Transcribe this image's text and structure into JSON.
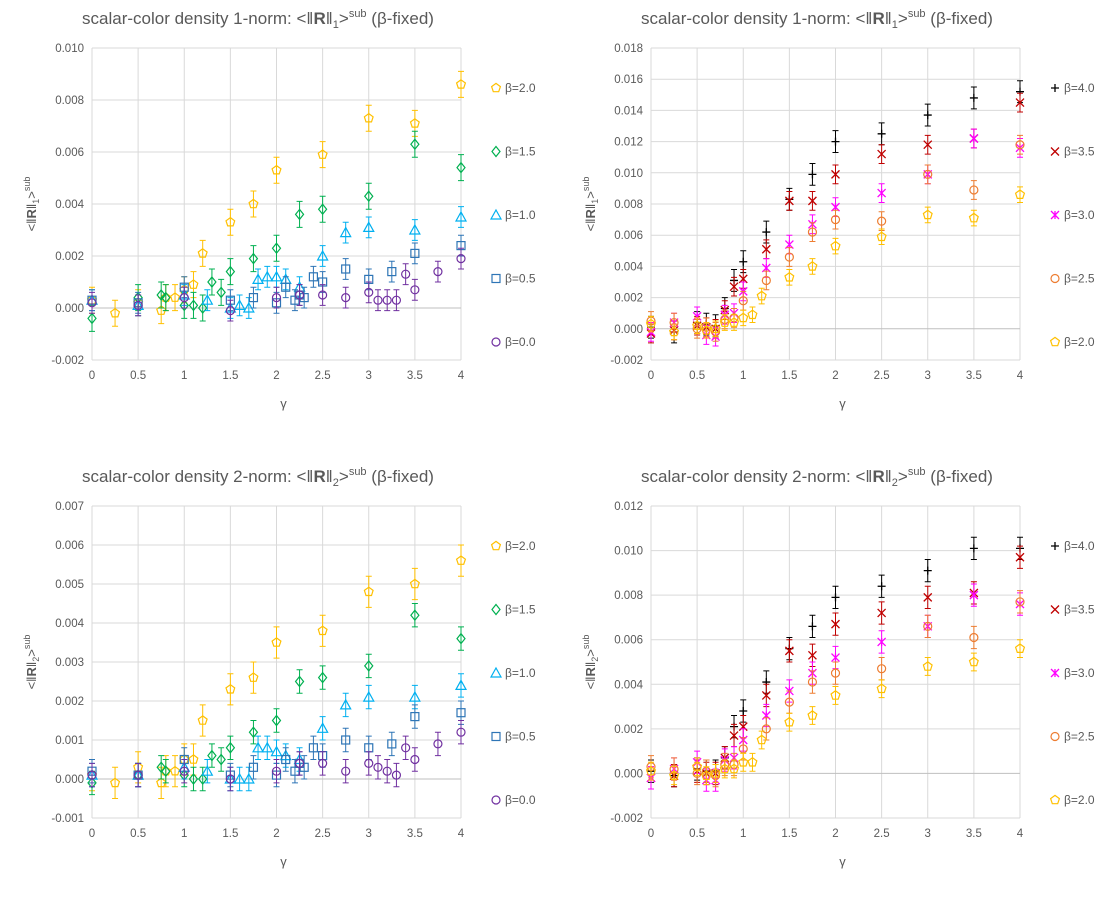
{
  "chart_data": [
    {
      "type": "scatter",
      "title_prefix": "scalar-color density 1-norm: <‖",
      "title_bold": "R",
      "title_sub": "1",
      "title_sup": "sub",
      "title_suffix": "(β-fixed)",
      "ylabel_sub": "1",
      "xlabel": "γ",
      "xlim": [
        0,
        4
      ],
      "ylim": [
        -0.002,
        0.01
      ],
      "xticks": [
        "0",
        "0.5",
        "1",
        "1.5",
        "2",
        "2.5",
        "3",
        "3.5",
        "4"
      ],
      "yticks": [
        "-0.002",
        "0.000",
        "0.002",
        "0.004",
        "0.006",
        "0.008",
        "0.010"
      ],
      "legend_position": "right",
      "series": [
        {
          "name": "β=2.0",
          "color": "#FFC000",
          "marker": "pentagon",
          "x": [
            0,
            0.25,
            0.5,
            0.75,
            0.8,
            0.9,
            1,
            1.1,
            1.2,
            1.5,
            1.75,
            2,
            2.5,
            3,
            3.5,
            4
          ],
          "y": [
            0.0003,
            -0.0002,
            0.0002,
            -0.0001,
            0.0004,
            0.0004,
            0.0007,
            0.0009,
            0.0021,
            0.0033,
            0.004,
            0.0053,
            0.0059,
            0.0073,
            0.0071,
            0.0086
          ],
          "err": 0.0005
        },
        {
          "name": "β=1.5",
          "color": "#00B050",
          "marker": "diamond",
          "x": [
            0,
            0.5,
            0.75,
            0.8,
            1,
            1.1,
            1.2,
            1.3,
            1.4,
            1.5,
            1.75,
            2,
            2.25,
            2.5,
            3,
            3.5,
            4
          ],
          "y": [
            -0.0004,
            0.0004,
            0.0005,
            0.0004,
            0.0001,
            0.0001,
            0.0,
            0.001,
            0.0006,
            0.0014,
            0.0019,
            0.0023,
            0.0036,
            0.0038,
            0.0043,
            0.0063,
            0.0054
          ],
          "err": 0.0005
        },
        {
          "name": "β=1.0",
          "color": "#00B0F0",
          "marker": "triangle",
          "x": [
            0,
            0.5,
            1,
            1.25,
            1.5,
            1.6,
            1.7,
            1.8,
            1.9,
            2,
            2.1,
            2.25,
            2.5,
            2.75,
            3,
            3.5,
            4
          ],
          "y": [
            0.0003,
            0.0001,
            0.0005,
            0.0003,
            0.0,
            0.0001,
            0.0,
            0.0011,
            0.0012,
            0.0012,
            0.0011,
            0.0008,
            0.002,
            0.0029,
            0.0031,
            0.003,
            0.0035
          ],
          "err": 0.0004
        },
        {
          "name": "β=0.5",
          "color": "#2E75B6",
          "marker": "square",
          "x": [
            0,
            0.5,
            1,
            1.5,
            1.75,
            2,
            2.1,
            2.2,
            2.25,
            2.3,
            2.4,
            2.5,
            2.75,
            3,
            3.25,
            3.5,
            4
          ],
          "y": [
            0.0003,
            0.0002,
            0.0008,
            0.0003,
            0.0004,
            0.0002,
            0.0008,
            0.0003,
            0.0005,
            0.0004,
            0.0012,
            0.001,
            0.0015,
            0.0011,
            0.0014,
            0.0021,
            0.0024
          ],
          "err": 0.0004
        },
        {
          "name": "β=0.0",
          "color": "#7030A0",
          "marker": "circle",
          "x": [
            0,
            0.5,
            1,
            1.5,
            2,
            2.25,
            2.5,
            2.75,
            3,
            3.1,
            3.2,
            3.3,
            3.4,
            3.5,
            3.75,
            4
          ],
          "y": [
            0.0002,
            0.0001,
            0.0004,
            -0.0001,
            0.0004,
            0.0005,
            0.0005,
            0.0004,
            0.0006,
            0.0003,
            0.0003,
            0.0003,
            0.0013,
            0.0007,
            0.0014,
            0.0019
          ],
          "err": 0.0004
        }
      ]
    },
    {
      "type": "scatter",
      "title_prefix": "scalar-color density 1-norm: <‖",
      "title_bold": "R",
      "title_sub": "1",
      "title_sup": "sub",
      "title_suffix": "(β-fixed)",
      "ylabel_sub": "1",
      "xlabel": "γ",
      "xlim": [
        0,
        4
      ],
      "ylim": [
        -0.002,
        0.018
      ],
      "xticks": [
        "0",
        "0.5",
        "1",
        "1.5",
        "2",
        "2.5",
        "3",
        "3.5",
        "4"
      ],
      "yticks": [
        "-0.002",
        "0.000",
        "0.002",
        "0.004",
        "0.006",
        "0.008",
        "0.010",
        "0.012",
        "0.014",
        "0.016",
        "0.018"
      ],
      "legend_position": "right",
      "series": [
        {
          "name": "β=4.0",
          "color": "#000000",
          "marker": "plus",
          "x": [
            0,
            0.25,
            0.5,
            0.6,
            0.7,
            0.8,
            0.9,
            1,
            1.25,
            1.5,
            1.75,
            2,
            2.5,
            3,
            3.5,
            4
          ],
          "y": [
            0.0001,
            -0.0002,
            0.0004,
            0.0003,
            0.0002,
            0.0013,
            0.0031,
            0.0043,
            0.0062,
            0.0083,
            0.0099,
            0.012,
            0.0125,
            0.0137,
            0.0148,
            0.0152
          ],
          "err": 0.0007
        },
        {
          "name": "β=3.5",
          "color": "#C00000",
          "marker": "x",
          "x": [
            0,
            0.25,
            0.5,
            0.6,
            0.7,
            0.8,
            0.9,
            1,
            1.25,
            1.5,
            1.75,
            2,
            2.5,
            3,
            3.5,
            4
          ],
          "y": [
            -0.0003,
            -0.0001,
            0.0002,
            0.0001,
            0.0,
            0.0012,
            0.0027,
            0.0032,
            0.0051,
            0.0082,
            0.0082,
            0.0099,
            0.0112,
            0.0118,
            0.0122,
            0.0145
          ],
          "err": 0.0006
        },
        {
          "name": "β=3.0",
          "color": "#FF00FF",
          "marker": "star",
          "x": [
            0,
            0.25,
            0.5,
            0.6,
            0.7,
            0.8,
            0.9,
            1,
            1.25,
            1.5,
            1.75,
            2,
            2.5,
            3,
            3.5,
            4
          ],
          "y": [
            -0.0002,
            0.0004,
            0.0008,
            -0.0004,
            -0.0005,
            0.0009,
            0.001,
            0.0024,
            0.0039,
            0.0054,
            0.0067,
            0.0078,
            0.0087,
            0.0099,
            0.0122,
            0.0116
          ],
          "err": 0.0006
        },
        {
          "name": "β=2.5",
          "color": "#ED7D31",
          "marker": "circle",
          "x": [
            0,
            0.25,
            0.5,
            0.6,
            0.7,
            0.8,
            0.9,
            1,
            1.25,
            1.5,
            1.75,
            2,
            2.5,
            3,
            3.5,
            4
          ],
          "y": [
            0.0005,
            0.0004,
            0.0,
            0.0001,
            -0.0002,
            0.0006,
            0.0007,
            0.0018,
            0.0031,
            0.0046,
            0.0062,
            0.007,
            0.0069,
            0.0099,
            0.0089,
            0.0118
          ],
          "err": 0.0006
        },
        {
          "name": "β=2.0",
          "color": "#FFC000",
          "marker": "pentagon",
          "x": [
            0,
            0.25,
            0.5,
            0.6,
            0.7,
            0.8,
            0.9,
            1,
            1.1,
            1.2,
            1.5,
            1.75,
            2,
            2.5,
            3,
            3.5,
            4
          ],
          "y": [
            0.0003,
            -0.0002,
            0.0002,
            -0.0001,
            0.0,
            0.0004,
            0.0004,
            0.0007,
            0.0009,
            0.0021,
            0.0033,
            0.004,
            0.0053,
            0.0059,
            0.0073,
            0.0071,
            0.0086
          ],
          "err": 0.0005
        }
      ]
    },
    {
      "type": "scatter",
      "title_prefix": "scalar-color density 2-norm: <‖",
      "title_bold": "R",
      "title_sub": "2",
      "title_sup": "sub",
      "title_suffix": "(β-fixed)",
      "ylabel_sub": "2",
      "xlabel": "γ",
      "xlim": [
        0,
        4
      ],
      "ylim": [
        -0.001,
        0.007
      ],
      "xticks": [
        "0",
        "0.5",
        "1",
        "1.5",
        "2",
        "2.5",
        "3",
        "3.5",
        "4"
      ],
      "yticks": [
        "-0.001",
        "0.000",
        "0.001",
        "0.002",
        "0.003",
        "0.004",
        "0.005",
        "0.006",
        "0.007"
      ],
      "legend_position": "right",
      "series": [
        {
          "name": "β=2.0",
          "color": "#FFC000",
          "marker": "pentagon",
          "x": [
            0,
            0.25,
            0.5,
            0.75,
            0.8,
            0.9,
            1,
            1.1,
            1.2,
            1.5,
            1.75,
            2,
            2.5,
            3,
            3.5,
            4
          ],
          "y": [
            0.0001,
            -0.0001,
            0.0003,
            -0.0001,
            0.0002,
            0.0002,
            0.0005,
            0.0005,
            0.0015,
            0.0023,
            0.0026,
            0.0035,
            0.0038,
            0.0048,
            0.005,
            0.0056
          ],
          "err": 0.0004
        },
        {
          "name": "β=1.5",
          "color": "#00B050",
          "marker": "diamond",
          "x": [
            0,
            0.5,
            0.75,
            0.8,
            1,
            1.1,
            1.2,
            1.3,
            1.4,
            1.5,
            1.75,
            2,
            2.25,
            2.5,
            3,
            3.5,
            4
          ],
          "y": [
            -0.0001,
            0.0001,
            0.0003,
            0.0002,
            0.0001,
            0.0,
            0.0,
            0.0006,
            0.0005,
            0.0008,
            0.0012,
            0.0015,
            0.0025,
            0.0026,
            0.0029,
            0.0042,
            0.0036
          ],
          "err": 0.0003
        },
        {
          "name": "β=1.0",
          "color": "#00B0F0",
          "marker": "triangle",
          "x": [
            0,
            0.5,
            1,
            1.25,
            1.5,
            1.6,
            1.7,
            1.8,
            1.9,
            2,
            2.1,
            2.25,
            2.5,
            2.75,
            3,
            3.5,
            4
          ],
          "y": [
            0.0001,
            0.0001,
            0.0003,
            0.0002,
            0.0,
            0.0,
            0.0,
            0.0008,
            0.0008,
            0.0007,
            0.0006,
            0.0005,
            0.0013,
            0.0019,
            0.0021,
            0.0021,
            0.0024
          ],
          "err": 0.0003
        },
        {
          "name": "β=0.5",
          "color": "#2E75B6",
          "marker": "square",
          "x": [
            0,
            0.5,
            1,
            1.5,
            1.75,
            2,
            2.1,
            2.2,
            2.25,
            2.3,
            2.4,
            2.5,
            2.75,
            3,
            3.25,
            3.5,
            4
          ],
          "y": [
            0.0002,
            0.0001,
            0.0005,
            0.0001,
            0.0003,
            0.0001,
            0.0005,
            0.0002,
            0.0004,
            0.0003,
            0.0008,
            0.0006,
            0.001,
            0.0008,
            0.0009,
            0.0016,
            0.0017
          ],
          "err": 0.0003
        },
        {
          "name": "β=0.0",
          "color": "#7030A0",
          "marker": "circle",
          "x": [
            0,
            0.5,
            1,
            1.5,
            2,
            2.25,
            2.5,
            2.75,
            3,
            3.1,
            3.2,
            3.3,
            3.4,
            3.5,
            3.75,
            4
          ],
          "y": [
            0.0001,
            0.0001,
            0.0002,
            0.0,
            0.0002,
            0.0004,
            0.0004,
            0.0002,
            0.0004,
            0.0003,
            0.0002,
            0.0001,
            0.0008,
            0.0005,
            0.0009,
            0.0012
          ],
          "err": 0.0003
        }
      ]
    },
    {
      "type": "scatter",
      "title_prefix": "scalar-color density 2-norm: <‖",
      "title_bold": "R",
      "title_sub": "2",
      "title_sup": "sub",
      "title_suffix": "(β-fixed)",
      "ylabel_sub": "2",
      "xlabel": "γ",
      "xlim": [
        0,
        4
      ],
      "ylim": [
        -0.002,
        0.012
      ],
      "xticks": [
        "0",
        "0.5",
        "1",
        "1.5",
        "2",
        "2.5",
        "3",
        "3.5",
        "4"
      ],
      "yticks": [
        "-0.002",
        "0.000",
        "0.002",
        "0.004",
        "0.006",
        "0.008",
        "0.010",
        "0.012"
      ],
      "legend_position": "right",
      "series": [
        {
          "name": "β=4.0",
          "color": "#000000",
          "marker": "plus",
          "x": [
            0,
            0.25,
            0.5,
            0.6,
            0.7,
            0.8,
            0.9,
            1,
            1.25,
            1.5,
            1.75,
            2,
            2.5,
            3,
            3.5,
            4
          ],
          "y": [
            0.0001,
            -0.0001,
            0.0002,
            0.0001,
            0.0001,
            0.0007,
            0.0021,
            0.0028,
            0.0041,
            0.0056,
            0.0066,
            0.0079,
            0.0084,
            0.0091,
            0.0101,
            0.0101
          ],
          "err": 0.0005
        },
        {
          "name": "β=3.5",
          "color": "#C00000",
          "marker": "x",
          "x": [
            0,
            0.25,
            0.5,
            0.6,
            0.7,
            0.8,
            0.9,
            1,
            1.25,
            1.5,
            1.75,
            2,
            2.5,
            3,
            3.5,
            4
          ],
          "y": [
            -0.0002,
            -0.0001,
            0.0001,
            0.0,
            0.0,
            0.0007,
            0.0017,
            0.0021,
            0.0035,
            0.0055,
            0.0053,
            0.0067,
            0.0072,
            0.0079,
            0.0081,
            0.0097
          ],
          "err": 0.0005
        },
        {
          "name": "β=3.0",
          "color": "#FF00FF",
          "marker": "star",
          "x": [
            0,
            0.25,
            0.5,
            0.6,
            0.7,
            0.8,
            0.9,
            1,
            1.25,
            1.5,
            1.75,
            2,
            2.5,
            3,
            3.5,
            4
          ],
          "y": [
            -0.0002,
            0.0002,
            0.0005,
            -0.0003,
            -0.0003,
            0.0006,
            0.0007,
            0.0015,
            0.0026,
            0.0037,
            0.0045,
            0.0052,
            0.0059,
            0.0066,
            0.008,
            0.0076
          ],
          "err": 0.0005
        },
        {
          "name": "β=2.5",
          "color": "#ED7D31",
          "marker": "circle",
          "x": [
            0,
            0.25,
            0.5,
            0.6,
            0.7,
            0.8,
            0.9,
            1,
            1.25,
            1.5,
            1.75,
            2,
            2.5,
            3,
            3.5,
            4
          ],
          "y": [
            0.0003,
            0.0002,
            0.0,
            0.0001,
            -0.0001,
            0.0004,
            0.0004,
            0.0011,
            0.002,
            0.0032,
            0.0041,
            0.0045,
            0.0047,
            0.0066,
            0.0061,
            0.0077
          ],
          "err": 0.0005
        },
        {
          "name": "β=2.0",
          "color": "#FFC000",
          "marker": "pentagon",
          "x": [
            0,
            0.25,
            0.5,
            0.6,
            0.7,
            0.8,
            0.9,
            1,
            1.1,
            1.2,
            1.5,
            1.75,
            2,
            2.5,
            3,
            3.5,
            4
          ],
          "y": [
            0.0001,
            -0.0001,
            0.0003,
            -0.0001,
            0.0,
            0.0002,
            0.0002,
            0.0005,
            0.0005,
            0.0015,
            0.0023,
            0.0026,
            0.0035,
            0.0038,
            0.0048,
            0.005,
            0.0056
          ],
          "err": 0.0004
        }
      ]
    }
  ]
}
